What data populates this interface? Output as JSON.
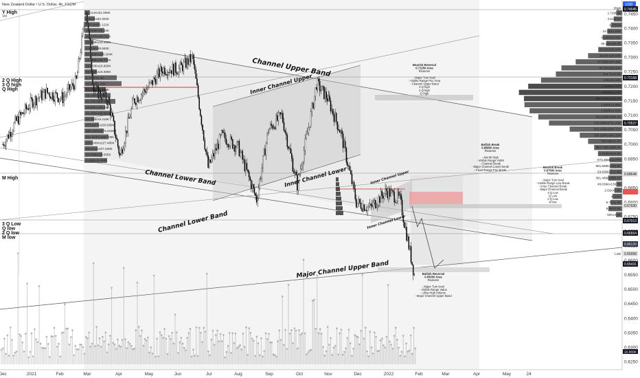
{
  "header": {
    "title": "New Zealand Dollar / U.S. Dollar, 4h, FXCM",
    "subtitle": "Vol",
    "currency": "USD"
  },
  "scale": {
    "mode_label": "High",
    "low_label": "Low"
  },
  "colors": {
    "accent": "#2962ff",
    "current_price_bg": "#131722",
    "resistance_zone": "#ef9a9a",
    "red_level": "#d32f2f",
    "volume_profile": "#2a2a2a"
  },
  "chart_data": {
    "type": "candlestick",
    "title": "New Zealand Dollar / U.S. Dollar, 4h, FXCM",
    "ylim": [
      0.62,
      0.748
    ],
    "y_ticks": [
      0.745,
      0.74,
      0.735,
      0.73,
      0.725,
      0.72,
      0.715,
      0.71,
      0.705,
      0.7,
      0.695,
      0.69,
      0.685,
      0.68,
      0.675,
      0.67,
      0.665,
      0.66,
      0.655,
      0.65,
      0.645,
      0.64,
      0.635,
      0.63,
      0.625
    ],
    "x_labels": [
      "Dec",
      "2021",
      "Feb",
      "Mar",
      "Apr",
      "May",
      "Jun",
      "Jul",
      "Aug",
      "Sep",
      "Oct",
      "Nov",
      "Dec",
      "2022",
      "Feb",
      "Mar",
      "Apr",
      "May",
      "24"
    ],
    "price_path": [
      [
        "2020-12-01",
        0.7
      ],
      [
        "2020-12-15",
        0.708
      ],
      [
        "2021-01-01",
        0.715
      ],
      [
        "2021-01-15",
        0.718
      ],
      [
        "2021-02-01",
        0.716
      ],
      [
        "2021-02-15",
        0.722
      ],
      [
        "2021-02-25",
        0.7465
      ],
      [
        "2021-03-05",
        0.719
      ],
      [
        "2021-03-20",
        0.715
      ],
      [
        "2021-04-01",
        0.696
      ],
      [
        "2021-04-15",
        0.715
      ],
      [
        "2021-05-01",
        0.72
      ],
      [
        "2021-05-15",
        0.726
      ],
      [
        "2021-06-01",
        0.726
      ],
      [
        "2021-06-15",
        0.73
      ],
      [
        "2021-07-01",
        0.692
      ],
      [
        "2021-07-15",
        0.703
      ],
      [
        "2021-08-01",
        0.699
      ],
      [
        "2021-08-20",
        0.681
      ],
      [
        "2021-09-01",
        0.705
      ],
      [
        "2021-09-15",
        0.71
      ],
      [
        "2021-10-01",
        0.686
      ],
      [
        "2021-10-15",
        0.71
      ],
      [
        "2021-10-21",
        0.721
      ],
      [
        "2021-11-01",
        0.716
      ],
      [
        "2021-11-15",
        0.704
      ],
      [
        "2021-12-01",
        0.68
      ],
      [
        "2021-12-15",
        0.678
      ],
      [
        "2022-01-01",
        0.684
      ],
      [
        "2022-01-15",
        0.681
      ],
      [
        "2022-01-31",
        0.653
      ]
    ],
    "key_levels": [
      {
        "name": "Y High",
        "value": 0.7465
      },
      {
        "name": "2 Q High",
        "value": 0.7217
      },
      {
        "name": "M High",
        "value": 0.6865
      },
      {
        "name": "3 Q Low",
        "value": 0.67
      },
      {
        "name": "M low",
        "value": 0.6632
      }
    ],
    "price_labels": [
      {
        "value": "0.74645",
        "style": "dark"
      },
      {
        "value": "0.72168",
        "style": "dark"
      },
      {
        "value": "0.70537",
        "style": "dark"
      },
      {
        "value": "0.68648",
        "style": "light"
      },
      {
        "value": "0.67930",
        "style": "light"
      },
      {
        "value": "0.67013",
        "style": "dark"
      },
      {
        "value": "0.66554",
        "style": "dark"
      },
      {
        "value": "0.66120",
        "style": "current"
      },
      {
        "value": "0.65958",
        "style": "light"
      },
      {
        "value": "0.65431",
        "style": "dark"
      }
    ],
    "volume_profile_left": [
      "25.111Kx51.065K",
      "9.812Kx53.302K",
      "5.971Kx25.121K",
      "25.306Kx45.42K",
      "40.817Kx46.721K",
      "33.056Kx43.409K",
      "4.271Kx48.562K",
      "56.499Kx298.184K",
      "16.468Kx26.772K",
      "28.663Kx18.969K",
      "25.883Kx16.365K",
      "4.771Kx2.1K",
      "25.9Kx21.26K",
      "75.33Kx51.993K",
      "19.1Kx35.21K",
      "41.33Kx413.182K",
      "49.83Kx136.89K",
      "46.495Kx69.861K",
      "58.396Kx9.418K",
      "173.647Kx209.589K",
      "285.194Kx275.219K",
      "211.262Kx195.205K",
      "203.649Kx227.486K",
      "85.011Kx107.028K",
      "23.666Kx30.005K",
      "5.996Kx6.599K"
    ],
    "volume_profile_right": [
      "1.729Kx0",
      "4.513Kx0",
      "1.77Kx0",
      "24.8Kx1.64K",
      "13.66Kx3.42K",
      "35.34Kx15.3K",
      "56.61Kx25.47K",
      "39.83Kx26.93K",
      "97.656Kx87.49K",
      "60.92Kx59.33K",
      "344.7Kx9.0K",
      "1.5Kx64.52K",
      "1.416Kx1.17K",
      "1.809Kx1.17K",
      "894.339Kx106.7K",
      "1.554Kx1.65K",
      "1.566Kx1.67K",
      "912.629Kx806.1K",
      "742.499Kx791.25K",
      "543.469Kx654.71K",
      "358.299Kx382.22K",
      "790.69Kx1.2K",
      "884.736Kx890.2K",
      "1.816Kx946.6K",
      "873.368Kx1.07K",
      "961.658Kx782.9K",
      "63.836Kx727.5K",
      "381.466Kx380.1K",
      "48.839Kx139.7K",
      "2.61Kx3.0K",
      "4.11Kx",
      "5.7Kx1.4K",
      "8.0Kx3.1K",
      "92Kx4.4K"
    ],
    "current_volume": "22.969K"
  },
  "drawings": {
    "side_labels_upper": [
      "Y High"
    ],
    "side_labels_q": [
      "2 Q High",
      "3 Q high",
      "Q High"
    ],
    "side_labels_m": [
      "M High"
    ],
    "side_labels_low": [
      "3 Q Low",
      "Q low",
      "2 Q low",
      "M low"
    ],
    "channel_upper": "Channel Upper Band",
    "inner_channel_upper": "Inner Channel Upper",
    "channel_lower_1": "Channel Lower Band",
    "inner_channel_lower_1": "Inner Channel Lower",
    "channel_lower_2": "Channel Lower Band",
    "inner_channel_lower_2": "Inner Channel Lower",
    "inner_channel_upper_small": "Inner Channel Upper",
    "major_channel_upper": "Major Channel Upper Band",
    "note_bearish_1": [
      "Bearish Reversal",
      "0.71250 Area",
      "Reasons",
      "",
      "- Major Turn level",
      "- Visible Range Poc Area",
      "- Channel Upper Band",
      "3 Q high",
      "2 Q high",
      "Q High"
    ],
    "note_bullish_1": [
      "Bullish Break",
      "0.68800 Area",
      "Reasons",
      "",
      "- Month High",
      "- Visible Range VWM",
      "- Channel Break",
      "- Major Channel Lower break",
      "- Fixed Range Poc Break"
    ],
    "note_bearish_2": [
      "Bearish Break",
      "0.67500 Area",
      "Reasons",
      "",
      "- Major Turn level",
      "- Visible Range Low Break",
      "- Inner Channel Break",
      "- Major Channel Break",
      "3 Q Low",
      "Q Low",
      "2 Q Low",
      "M low"
    ],
    "note_bullish_2": [
      "Bullish Reversal",
      "0.65000 Area",
      "Reasons",
      "",
      "- Major Turn level",
      "- Visible Range Value",
      "- Ultra High Volume",
      "- Major Channel Upper Band"
    ]
  }
}
